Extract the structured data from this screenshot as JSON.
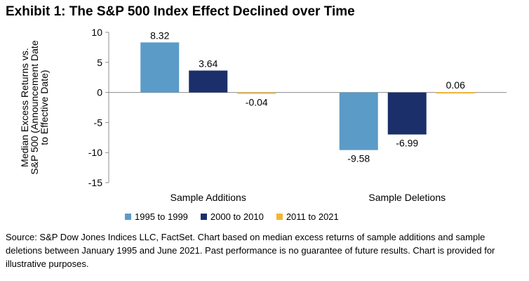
{
  "chart_data": {
    "type": "bar",
    "title": "Exhibit 1: The S&P 500 Index Effect Declined over Time",
    "categories": [
      "Sample Additions",
      "Sample Deletions"
    ],
    "series": [
      {
        "name": "1995 to 1999",
        "color": "#5b9bc8",
        "values": [
          8.32,
          -9.58
        ],
        "labels": [
          "8.32",
          "-9.58"
        ]
      },
      {
        "name": "2000 to 2010",
        "color": "#1b2f6b",
        "values": [
          3.64,
          -6.99
        ],
        "labels": [
          "3.64",
          "-6.99"
        ]
      },
      {
        "name": "2011 to 2021",
        "color": "#f2b632",
        "values": [
          -0.04,
          0.06
        ],
        "labels": [
          "-0.04",
          "0.06"
        ]
      }
    ],
    "ylabel_lines": [
      "Median Excess Returns vs.",
      "S&P 500 (Announcement Date",
      "to Effective Date)"
    ],
    "xlabel": "",
    "ylim": [
      -15,
      10
    ],
    "yticks": [
      10,
      5,
      0,
      -5,
      -10,
      -15
    ],
    "ytick_labels": [
      "10",
      "5",
      "0",
      "-5",
      "-10",
      "-15"
    ],
    "legend_position": "bottom",
    "grid": false
  },
  "source_note": "Source: S&P Dow Jones Indices LLC, FactSet.  Chart based on median excess returns of sample additions and sample deletions between January 1995 and June 2021.  Past performance is no guarantee of future results.  Chart is provided for illustrative purposes."
}
